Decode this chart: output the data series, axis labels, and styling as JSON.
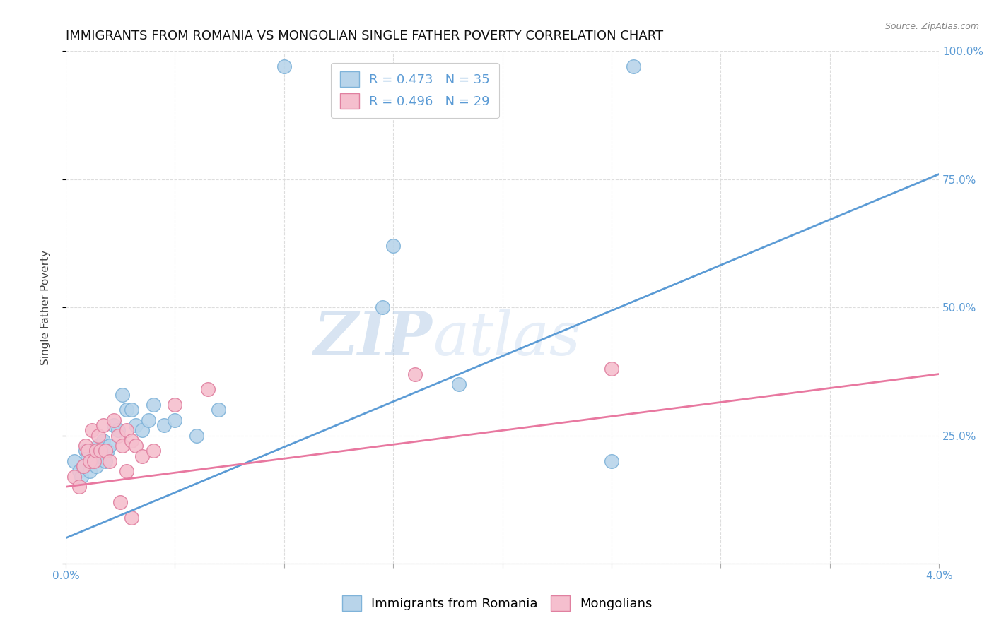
{
  "title": "IMMIGRANTS FROM ROMANIA VS MONGOLIAN SINGLE FATHER POVERTY CORRELATION CHART",
  "source": "Source: ZipAtlas.com",
  "ylabel": "Single Father Poverty",
  "x_min": 0.0,
  "x_max": 4.0,
  "y_min": 0.0,
  "y_max": 100.0,
  "y_ticks_right": [
    25.0,
    50.0,
    75.0,
    100.0
  ],
  "y_tick_labels_right": [
    "25.0%",
    "50.0%",
    "75.0%",
    "100.0%"
  ],
  "romania_color": "#b8d4ea",
  "romania_edge_color": "#7fb3d9",
  "mongolian_color": "#f5bfce",
  "mongolian_edge_color": "#e080a0",
  "romania_line_color": "#5b9bd5",
  "mongolian_line_color": "#e878a0",
  "R_romania": 0.473,
  "N_romania": 35,
  "R_mongolian": 0.496,
  "N_mongolian": 29,
  "watermark_zip": "ZIP",
  "watermark_atlas": "atlas",
  "romania_x": [
    0.04,
    0.06,
    0.07,
    0.08,
    0.09,
    0.1,
    0.11,
    0.12,
    0.13,
    0.14,
    0.15,
    0.16,
    0.17,
    0.18,
    0.19,
    0.2,
    0.22,
    0.24,
    0.26,
    0.28,
    0.3,
    0.32,
    0.35,
    0.38,
    0.4,
    0.45,
    0.5,
    0.6,
    0.7,
    1.0,
    1.5,
    1.8,
    2.5,
    2.6,
    1.45
  ],
  "romania_y": [
    20,
    18,
    17,
    19,
    22,
    21,
    18,
    20,
    22,
    19,
    23,
    21,
    24,
    20,
    22,
    23,
    27,
    26,
    33,
    30,
    30,
    27,
    26,
    28,
    31,
    27,
    28,
    25,
    30,
    97,
    62,
    35,
    20,
    97,
    50
  ],
  "mongolian_x": [
    0.04,
    0.06,
    0.08,
    0.09,
    0.1,
    0.11,
    0.12,
    0.13,
    0.14,
    0.15,
    0.16,
    0.17,
    0.18,
    0.2,
    0.22,
    0.24,
    0.26,
    0.28,
    0.3,
    0.32,
    0.35,
    0.4,
    0.5,
    0.65,
    1.6,
    2.5,
    0.25,
    0.3,
    0.28
  ],
  "mongolian_y": [
    17,
    15,
    19,
    23,
    22,
    20,
    26,
    20,
    22,
    25,
    22,
    27,
    22,
    20,
    28,
    25,
    23,
    26,
    24,
    23,
    21,
    22,
    31,
    34,
    37,
    38,
    12,
    9,
    18
  ],
  "blue_line_x0": 0.0,
  "blue_line_y0": 5.0,
  "blue_line_x1": 4.0,
  "blue_line_y1": 76.0,
  "pink_line_x0": 0.0,
  "pink_line_y0": 15.0,
  "pink_line_x1": 4.0,
  "pink_line_y1": 37.0,
  "background_color": "#ffffff",
  "grid_color": "#dddddd",
  "title_fontsize": 13,
  "legend_fontsize": 13,
  "axis_label_fontsize": 11,
  "tick_fontsize": 11,
  "source_fontsize": 9
}
